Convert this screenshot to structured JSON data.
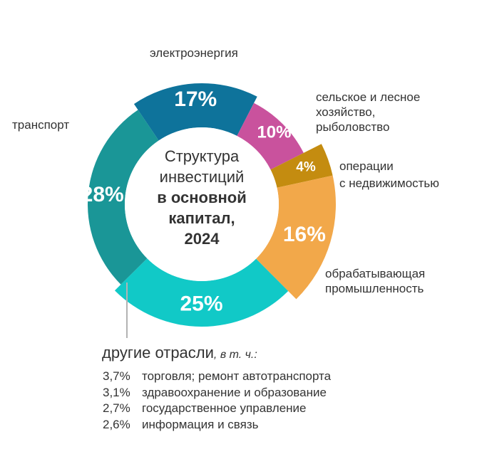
{
  "title": {
    "line1": "Структура",
    "line2": "инвестиций",
    "line3": "в основной",
    "line4": "капитал,",
    "line5": "2024"
  },
  "segments": [
    {
      "name": "электроэнергия",
      "label": "17%",
      "value": 17,
      "color": "#0e739b"
    },
    {
      "name": "сельское и лесное хозяйство, рыболовство",
      "label": "10%",
      "value": 10,
      "color": "#c9529d"
    },
    {
      "name": "операции с недвижимостью",
      "label": "4%",
      "value": 4,
      "color": "#c48c10"
    },
    {
      "name": "обрабатывающая промышленность",
      "label": "16%",
      "value": 16,
      "color": "#f2a84a"
    },
    {
      "name": "другие отрасли",
      "label": "25%",
      "value": 25,
      "color": "#11c9c7"
    },
    {
      "name": "транспорт",
      "label": "28%",
      "value": 28,
      "color": "#1a9697"
    }
  ],
  "labels": {
    "electricity": "электроэнергия",
    "agri_l1": "сельское и лесное",
    "agri_l2": "хозяйство,",
    "agri_l3": "рыболовство",
    "realestate_l1": "операции",
    "realestate_l2": "с недвижимостью",
    "manufacturing_l1": "обрабатывающая",
    "manufacturing_l2": "промышленность",
    "transport": "транспорт"
  },
  "others": {
    "heading": "другие отрасли",
    "heading_suffix": ", в т. ч.:",
    "items": [
      {
        "pct": "3,7%",
        "label": "торговля; ремонт автотранспорта"
      },
      {
        "pct": "3,1%",
        "label": "здравоохранение и образование"
      },
      {
        "pct": "2,7%",
        "label": "государственное управление"
      },
      {
        "pct": "2,6%",
        "label": "информация и связь"
      }
    ]
  },
  "chart_data": {
    "type": "pie",
    "variant": "donut",
    "title": "Структура инвестиций в основной капитал, 2024",
    "categories": [
      "электроэнергия",
      "сельское и лесное хозяйство, рыболовство",
      "операции с недвижимостью",
      "обрабатывающая промышленность",
      "другие отрасли",
      "транспорт"
    ],
    "values": [
      17,
      10,
      4,
      16,
      25,
      28
    ],
    "unit": "%",
    "sub_breakdown": {
      "parent": "другие отрасли",
      "categories": [
        "торговля; ремонт автотранспорта",
        "здравоохранение и образование",
        "государственное управление",
        "информация и связь"
      ],
      "values": [
        3.7,
        3.1,
        2.7,
        2.6
      ]
    }
  }
}
